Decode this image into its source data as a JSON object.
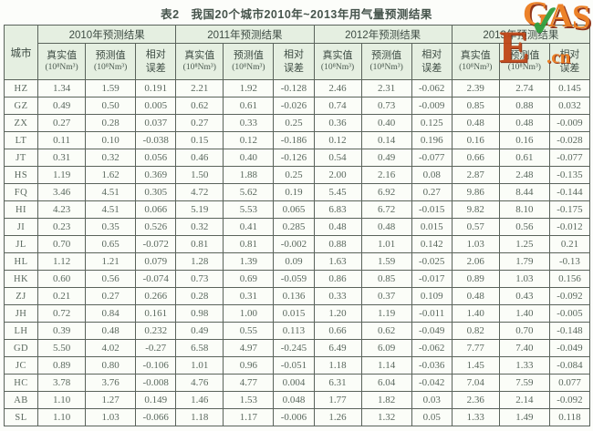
{
  "title": "表2　我国20个城市2010年~2013年用气量预测结果",
  "logo": {
    "e": "E",
    "g": "G",
    "a": "A",
    "s": "S",
    "check": "✓",
    "cn": ".cn"
  },
  "table": {
    "city_header": "城市",
    "year_groups": [
      "2010年预测结果",
      "2011年预测结果",
      "2012年预测结果",
      "2013年预测结果"
    ],
    "sub_headers": {
      "actual": "真实值",
      "predicted": "预测值",
      "error_line1": "相对",
      "error_line2": "误差",
      "unit": "(10⁸Nm³)"
    },
    "rows": [
      {
        "city": "HZ",
        "values": [
          "1.34",
          "1.59",
          "0.191",
          "2.21",
          "1.92",
          "-0.128",
          "2.46",
          "2.31",
          "-0.062",
          "2.39",
          "2.74",
          "0.145"
        ]
      },
      {
        "city": "GZ",
        "values": [
          "0.49",
          "0.50",
          "0.005",
          "0.62",
          "0.61",
          "-0.026",
          "0.74",
          "0.73",
          "-0.009",
          "0.85",
          "0.88",
          "0.032"
        ]
      },
      {
        "city": "ZX",
        "values": [
          "0.27",
          "0.28",
          "0.037",
          "0.27",
          "0.33",
          "0.25",
          "0.36",
          "0.40",
          "0.125",
          "0.48",
          "0.48",
          "-0.009"
        ]
      },
      {
        "city": "LT",
        "values": [
          "0.11",
          "0.10",
          "-0.038",
          "0.15",
          "0.12",
          "-0.186",
          "0.12",
          "0.14",
          "0.196",
          "0.16",
          "0.16",
          "-0.028"
        ]
      },
      {
        "city": "JT",
        "values": [
          "0.31",
          "0.32",
          "0.056",
          "0.46",
          "0.40",
          "-0.126",
          "0.54",
          "0.49",
          "-0.077",
          "0.66",
          "0.61",
          "-0.077"
        ]
      },
      {
        "city": "HS",
        "values": [
          "1.19",
          "1.62",
          "0.369",
          "1.50",
          "1.88",
          "0.25",
          "2.00",
          "2.16",
          "0.08",
          "2.87",
          "2.48",
          "-0.135"
        ]
      },
      {
        "city": "FQ",
        "values": [
          "3.46",
          "4.51",
          "0.305",
          "4.72",
          "5.62",
          "0.19",
          "5.45",
          "6.92",
          "0.27",
          "9.86",
          "8.44",
          "-0.144"
        ]
      },
      {
        "city": "HI",
        "values": [
          "4.23",
          "4.51",
          "0.066",
          "5.19",
          "5.53",
          "0.065",
          "6.83",
          "6.72",
          "-0.015",
          "9.82",
          "8.10",
          "-0.175"
        ]
      },
      {
        "city": "JI",
        "values": [
          "0.23",
          "0.35",
          "0.526",
          "0.32",
          "0.41",
          "0.285",
          "0.48",
          "0.48",
          "0.015",
          "0.57",
          "0.56",
          "-0.012"
        ]
      },
      {
        "city": "JL",
        "values": [
          "0.70",
          "0.65",
          "-0.072",
          "0.81",
          "0.81",
          "-0.002",
          "0.88",
          "1.01",
          "0.142",
          "1.03",
          "1.25",
          "0.21"
        ]
      },
      {
        "city": "HL",
        "values": [
          "1.12",
          "1.21",
          "0.079",
          "1.28",
          "1.39",
          "0.09",
          "1.63",
          "1.59",
          "-0.025",
          "2.06",
          "1.79",
          "-0.13"
        ]
      },
      {
        "city": "HK",
        "values": [
          "0.60",
          "0.56",
          "-0.074",
          "0.73",
          "0.69",
          "-0.059",
          "0.86",
          "0.85",
          "-0.017",
          "0.89",
          "1.03",
          "0.156"
        ]
      },
      {
        "city": "ZJ",
        "values": [
          "0.21",
          "0.27",
          "0.266",
          "0.28",
          "0.31",
          "0.136",
          "0.33",
          "0.37",
          "0.109",
          "0.48",
          "0.43",
          "-0.092"
        ]
      },
      {
        "city": "JH",
        "values": [
          "0.72",
          "0.84",
          "0.161",
          "0.98",
          "1.00",
          "0.015",
          "1.20",
          "1.19",
          "-0.011",
          "1.40",
          "1.40",
          "-0.005"
        ]
      },
      {
        "city": "LH",
        "values": [
          "0.39",
          "0.48",
          "0.232",
          "0.49",
          "0.55",
          "0.113",
          "0.66",
          "0.62",
          "-0.049",
          "0.82",
          "0.70",
          "-0.148"
        ]
      },
      {
        "city": "GD",
        "values": [
          "5.50",
          "4.02",
          "-0.27",
          "6.58",
          "4.97",
          "-0.245",
          "6.49",
          "6.09",
          "-0.062",
          "7.77",
          "7.40",
          "-0.049"
        ]
      },
      {
        "city": "JC",
        "values": [
          "0.89",
          "0.80",
          "-0.106",
          "1.01",
          "0.96",
          "-0.051",
          "1.18",
          "1.14",
          "-0.036",
          "1.45",
          "1.33",
          "-0.084"
        ]
      },
      {
        "city": "HC",
        "values": [
          "3.78",
          "3.76",
          "-0.008",
          "4.76",
          "4.77",
          "0.004",
          "6.31",
          "6.04",
          "-0.042",
          "7.04",
          "7.59",
          "0.077"
        ]
      },
      {
        "city": "AB",
        "values": [
          "1.10",
          "1.27",
          "0.149",
          "1.46",
          "1.53",
          "0.048",
          "1.77",
          "1.82",
          "0.03",
          "2.36",
          "2.14",
          "-0.092"
        ]
      },
      {
        "city": "SL",
        "values": [
          "1.10",
          "1.03",
          "-0.066",
          "1.18",
          "1.17",
          "-0.006",
          "1.26",
          "1.32",
          "0.05",
          "1.33",
          "1.49",
          "0.118"
        ]
      }
    ]
  }
}
